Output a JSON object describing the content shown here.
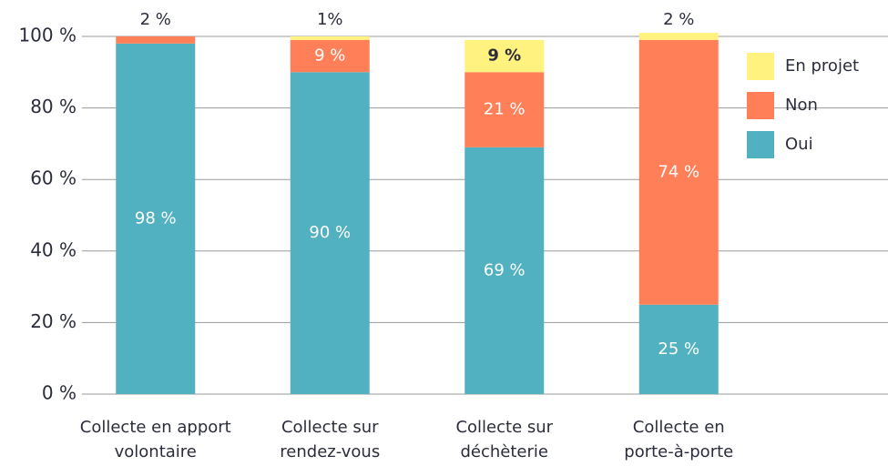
{
  "chart_data": {
    "type": "stacked-bar",
    "categories": [
      [
        "Collecte en apport",
        "volontaire"
      ],
      [
        "Collecte sur",
        "rendez-vous"
      ],
      [
        "Collecte sur",
        "déchèterie"
      ],
      [
        "Collecte en",
        "porte-à-porte"
      ]
    ],
    "series": [
      {
        "name": "Oui",
        "color": "#52b1c0",
        "values": [
          98,
          90,
          69,
          25
        ],
        "value_labels": [
          "98 %",
          "90 %",
          "69 %",
          "25 %"
        ]
      },
      {
        "name": "Non",
        "color": "#ff7f59",
        "values": [
          2,
          9,
          21,
          74
        ],
        "value_labels": [
          "2 %",
          "9 %",
          "21 %",
          "74 %"
        ]
      },
      {
        "name": "En projet",
        "color": "#fff27f",
        "values": [
          null,
          1,
          9,
          2
        ],
        "value_labels": [
          null,
          "1%",
          "9 %",
          "2 %"
        ]
      }
    ],
    "ylim": [
      0,
      100
    ],
    "yticks": [
      {
        "value": 0,
        "label": "0 %"
      },
      {
        "value": 20,
        "label": "20 %"
      },
      {
        "value": 40,
        "label": "40 %"
      },
      {
        "value": 60,
        "label": "60 %"
      },
      {
        "value": 80,
        "label": "80 %"
      },
      {
        "value": 100,
        "label": "100 %"
      }
    ],
    "grid": true,
    "legend": "top-right"
  }
}
